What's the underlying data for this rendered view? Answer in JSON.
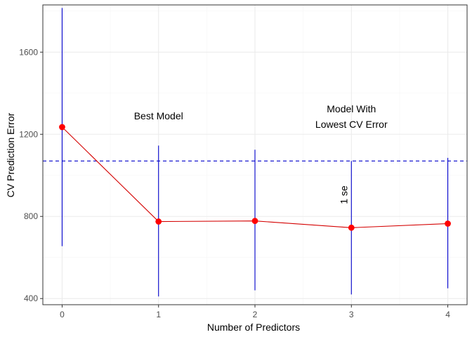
{
  "chart_data": {
    "type": "line",
    "title": "",
    "xlabel": "Number of Predictors",
    "ylabel": "CV Prediction Error",
    "x": [
      0,
      1,
      2,
      3,
      4
    ],
    "xlim": [
      -0.2,
      4.2
    ],
    "ylim": [
      370,
      1830
    ],
    "x_ticks": [
      0,
      1,
      2,
      3,
      4
    ],
    "y_ticks": [
      400,
      800,
      1200,
      1600
    ],
    "grid": true,
    "series": [
      {
        "values": [
          1235,
          775,
          778,
          745,
          765
        ],
        "error_low": [
          655,
          410,
          440,
          420,
          450
        ],
        "error_high": [
          1815,
          1145,
          1125,
          1070,
          1085
        ]
      }
    ],
    "hline": {
      "y": 1070,
      "style": "dashed"
    },
    "annotations": {
      "best_model": {
        "text": "Best Model",
        "x": 1,
        "y": 1290
      },
      "lowest_cv": {
        "lines": [
          "Model With",
          "Lowest CV Error"
        ],
        "x": 3,
        "y": 1290
      },
      "one_se": {
        "text": "1 se",
        "x": 2.92,
        "y": 905
      }
    },
    "colors": {
      "line": "#d40000",
      "point": "#ff0000",
      "error_bar": "#0000cc",
      "hline": "#0000cc",
      "one_se_text": "#0000ff",
      "grid_major": "#ebebeb",
      "grid_minor": "#f5f5f5",
      "panel_border": "#333333"
    }
  }
}
